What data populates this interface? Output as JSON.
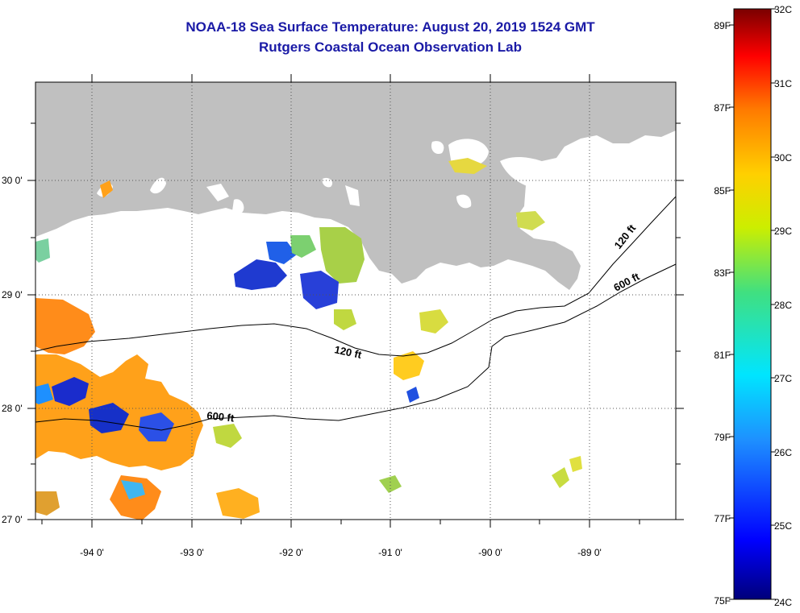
{
  "title": {
    "line1": "NOAA-18 Sea Surface Temperature:  August 20, 2019 1524 GMT",
    "line2": "Rutgers Coastal Ocean Observation Lab"
  },
  "map": {
    "lon_labels": [
      "-94 0'",
      "-93 0'",
      "-92 0'",
      "-91 0'",
      "-90 0'",
      "-89 0'"
    ],
    "lat_labels": [
      "30 0'",
      "29 0'",
      "28 0'",
      "27 0'"
    ],
    "contours": [
      "120 ft",
      "600 ft",
      "120 ft",
      "600 ft"
    ],
    "land_color": "#c0c0c0"
  },
  "colorbar": {
    "celsius": [
      "32C",
      "31C",
      "30C",
      "29C",
      "28C",
      "27C",
      "26C",
      "25C",
      "24C"
    ],
    "fahrenheit": [
      "89F",
      "87F",
      "85F",
      "83F",
      "81F",
      "79F",
      "77F",
      "75F"
    ]
  }
}
